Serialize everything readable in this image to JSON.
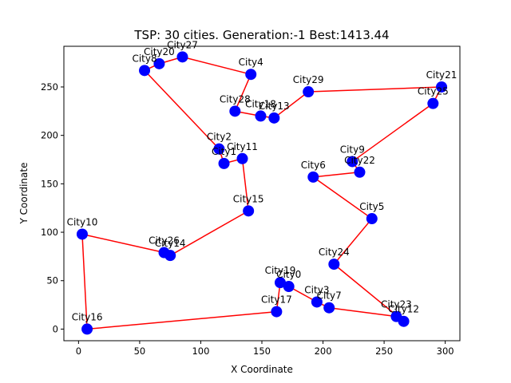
{
  "chart_data": {
    "type": "scatter",
    "title": "TSP: 30 cities.  Generation:-1 Best:1413.44",
    "xlabel": "X Coordinate",
    "ylabel": "Y Coordinate",
    "xlim": [
      -12,
      312
    ],
    "ylim": [
      -12,
      292
    ],
    "xticks": [
      0,
      50,
      100,
      150,
      200,
      250,
      300
    ],
    "yticks": [
      0,
      50,
      100,
      150,
      200,
      250
    ],
    "grid": false,
    "point_color": "#0000ff",
    "line_color": "#ff0000",
    "cities": [
      {
        "name": "City0",
        "x": 172,
        "y": 44
      },
      {
        "name": "City1",
        "x": 119,
        "y": 171
      },
      {
        "name": "City2",
        "x": 115,
        "y": 186
      },
      {
        "name": "City3",
        "x": 195,
        "y": 28
      },
      {
        "name": "City4",
        "x": 141,
        "y": 263
      },
      {
        "name": "City5",
        "x": 240,
        "y": 114
      },
      {
        "name": "City6",
        "x": 192,
        "y": 157
      },
      {
        "name": "City7",
        "x": 205,
        "y": 22
      },
      {
        "name": "City8",
        "x": 54,
        "y": 267
      },
      {
        "name": "City9",
        "x": 224,
        "y": 173
      },
      {
        "name": "City10",
        "x": 3,
        "y": 98
      },
      {
        "name": "City11",
        "x": 134,
        "y": 176
      },
      {
        "name": "City12",
        "x": 266,
        "y": 8
      },
      {
        "name": "City13",
        "x": 160,
        "y": 218
      },
      {
        "name": "City14",
        "x": 75,
        "y": 76
      },
      {
        "name": "City15",
        "x": 139,
        "y": 122
      },
      {
        "name": "City16",
        "x": 7,
        "y": 0
      },
      {
        "name": "City17",
        "x": 162,
        "y": 18
      },
      {
        "name": "City18",
        "x": 149,
        "y": 220
      },
      {
        "name": "City19",
        "x": 165,
        "y": 48
      },
      {
        "name": "City20",
        "x": 66,
        "y": 274
      },
      {
        "name": "City21",
        "x": 297,
        "y": 250
      },
      {
        "name": "City22",
        "x": 230,
        "y": 162
      },
      {
        "name": "City23",
        "x": 260,
        "y": 13
      },
      {
        "name": "City24",
        "x": 209,
        "y": 67
      },
      {
        "name": "City25",
        "x": 290,
        "y": 233
      },
      {
        "name": "City26",
        "x": 70,
        "y": 79
      },
      {
        "name": "City27",
        "x": 85,
        "y": 281
      },
      {
        "name": "City28",
        "x": 128,
        "y": 225
      },
      {
        "name": "City29",
        "x": 188,
        "y": 245
      }
    ],
    "tour": [
      "City16",
      "City17",
      "City19",
      "City0",
      "City3",
      "City7",
      "City23",
      "City12",
      "City24",
      "City5",
      "City6",
      "City22",
      "City9",
      "City25",
      "City21",
      "City29",
      "City13",
      "City18",
      "City28",
      "City4",
      "City27",
      "City20",
      "City8",
      "City2",
      "City1",
      "City11",
      "City15",
      "City14",
      "City26",
      "City10",
      "City16"
    ]
  }
}
